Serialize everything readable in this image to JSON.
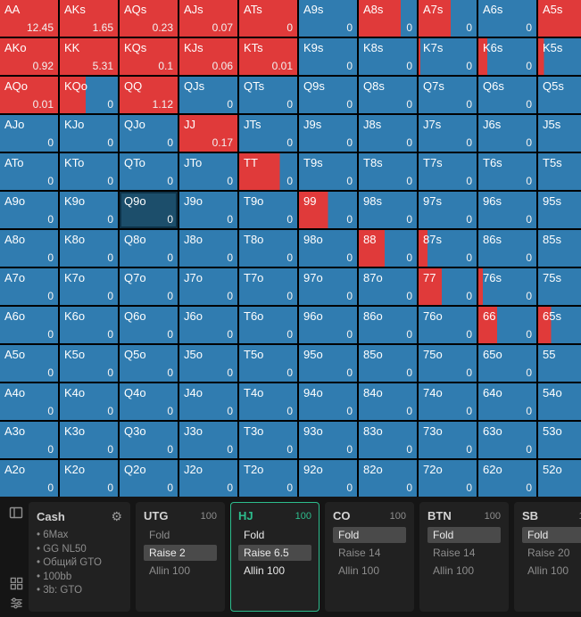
{
  "colors": {
    "raise": "#e03a3a",
    "fold": "#307cb0",
    "hover_bg": "#1c4e6b",
    "active_accent": "#2dbd8d"
  },
  "grid": {
    "hover_cell": "Q9o",
    "rows": [
      [
        [
          "AA",
          "12.45",
          1
        ],
        [
          "AKs",
          "1.65",
          1
        ],
        [
          "AQs",
          "0.23",
          1
        ],
        [
          "AJs",
          "0.07",
          1
        ],
        [
          "ATs",
          "0",
          1
        ],
        [
          "A9s",
          "0",
          0
        ],
        [
          "A8s",
          "0",
          0.72
        ],
        [
          "A7s",
          "0",
          0.55
        ],
        [
          "A6s",
          "0",
          0
        ],
        [
          "A5s",
          "0",
          0.9
        ]
      ],
      [
        [
          "AKo",
          "0.92",
          1
        ],
        [
          "KK",
          "5.31",
          1
        ],
        [
          "KQs",
          "0.1",
          1
        ],
        [
          "KJs",
          "0.06",
          1
        ],
        [
          "KTs",
          "0.01",
          1
        ],
        [
          "K9s",
          "0",
          0
        ],
        [
          "K8s",
          "0",
          0
        ],
        [
          "K7s",
          "0",
          0.03
        ],
        [
          "K6s",
          "0",
          0.15
        ],
        [
          "K5s",
          "0",
          0.1
        ]
      ],
      [
        [
          "AQo",
          "0.01",
          1
        ],
        [
          "KQo",
          "0",
          0.45
        ],
        [
          "QQ",
          "1.12",
          1
        ],
        [
          "QJs",
          "0",
          0
        ],
        [
          "QTs",
          "0",
          0
        ],
        [
          "Q9s",
          "0",
          0
        ],
        [
          "Q8s",
          "0",
          0
        ],
        [
          "Q7s",
          "0",
          0
        ],
        [
          "Q6s",
          "0",
          0
        ],
        [
          "Q5s",
          "0",
          0
        ]
      ],
      [
        [
          "AJo",
          "0",
          0
        ],
        [
          "KJo",
          "0",
          0
        ],
        [
          "QJo",
          "0",
          0
        ],
        [
          "JJ",
          "0.17",
          1
        ],
        [
          "JTs",
          "0",
          0
        ],
        [
          "J9s",
          "0",
          0
        ],
        [
          "J8s",
          "0",
          0
        ],
        [
          "J7s",
          "0",
          0
        ],
        [
          "J6s",
          "0",
          0
        ],
        [
          "J5s",
          "0",
          0
        ]
      ],
      [
        [
          "ATo",
          "0",
          0
        ],
        [
          "KTo",
          "0",
          0
        ],
        [
          "QTo",
          "0",
          0
        ],
        [
          "JTo",
          "0",
          0
        ],
        [
          "TT",
          "0",
          0.7
        ],
        [
          "T9s",
          "0",
          0
        ],
        [
          "T8s",
          "0",
          0
        ],
        [
          "T7s",
          "0",
          0
        ],
        [
          "T6s",
          "0",
          0
        ],
        [
          "T5s",
          "0",
          0
        ]
      ],
      [
        [
          "A9o",
          "0",
          0
        ],
        [
          "K9o",
          "0",
          0
        ],
        [
          "Q9o",
          "0",
          0
        ],
        [
          "J9o",
          "0",
          0
        ],
        [
          "T9o",
          "0",
          0
        ],
        [
          "99",
          "0",
          0.5
        ],
        [
          "98s",
          "0",
          0
        ],
        [
          "97s",
          "0",
          0
        ],
        [
          "96s",
          "0",
          0
        ],
        [
          "95s",
          "0",
          0
        ]
      ],
      [
        [
          "A8o",
          "0",
          0
        ],
        [
          "K8o",
          "0",
          0
        ],
        [
          "Q8o",
          "0",
          0
        ],
        [
          "J8o",
          "0",
          0
        ],
        [
          "T8o",
          "0",
          0
        ],
        [
          "98o",
          "0",
          0
        ],
        [
          "88",
          "0",
          0.45
        ],
        [
          "87s",
          "0",
          0.15
        ],
        [
          "86s",
          "0",
          0
        ],
        [
          "85s",
          "0",
          0
        ]
      ],
      [
        [
          "A7o",
          "0",
          0
        ],
        [
          "K7o",
          "0",
          0
        ],
        [
          "Q7o",
          "0",
          0
        ],
        [
          "J7o",
          "0",
          0
        ],
        [
          "T7o",
          "0",
          0
        ],
        [
          "97o",
          "0",
          0
        ],
        [
          "87o",
          "0",
          0
        ],
        [
          "77",
          "0",
          0.4
        ],
        [
          "76s",
          "0",
          0.08
        ],
        [
          "75s",
          "0",
          0
        ]
      ],
      [
        [
          "A6o",
          "0",
          0
        ],
        [
          "K6o",
          "0",
          0
        ],
        [
          "Q6o",
          "0",
          0
        ],
        [
          "J6o",
          "0",
          0
        ],
        [
          "T6o",
          "0",
          0
        ],
        [
          "96o",
          "0",
          0
        ],
        [
          "86o",
          "0",
          0
        ],
        [
          "76o",
          "0",
          0
        ],
        [
          "66",
          "0",
          0.32
        ],
        [
          "65s",
          "0",
          0.22
        ]
      ],
      [
        [
          "A5o",
          "0",
          0
        ],
        [
          "K5o",
          "0",
          0
        ],
        [
          "Q5o",
          "0",
          0
        ],
        [
          "J5o",
          "0",
          0
        ],
        [
          "T5o",
          "0",
          0
        ],
        [
          "95o",
          "0",
          0
        ],
        [
          "85o",
          "0",
          0
        ],
        [
          "75o",
          "0",
          0
        ],
        [
          "65o",
          "0",
          0
        ],
        [
          "55",
          "0",
          0
        ]
      ],
      [
        [
          "A4o",
          "0",
          0
        ],
        [
          "K4o",
          "0",
          0
        ],
        [
          "Q4o",
          "0",
          0
        ],
        [
          "J4o",
          "0",
          0
        ],
        [
          "T4o",
          "0",
          0
        ],
        [
          "94o",
          "0",
          0
        ],
        [
          "84o",
          "0",
          0
        ],
        [
          "74o",
          "0",
          0
        ],
        [
          "64o",
          "0",
          0
        ],
        [
          "54o",
          "0",
          0
        ]
      ],
      [
        [
          "A3o",
          "0",
          0
        ],
        [
          "K3o",
          "0",
          0
        ],
        [
          "Q3o",
          "0",
          0
        ],
        [
          "J3o",
          "0",
          0
        ],
        [
          "T3o",
          "0",
          0
        ],
        [
          "93o",
          "0",
          0
        ],
        [
          "83o",
          "0",
          0
        ],
        [
          "73o",
          "0",
          0
        ],
        [
          "63o",
          "0",
          0
        ],
        [
          "53o",
          "0",
          0
        ]
      ],
      [
        [
          "A2o",
          "0",
          0
        ],
        [
          "K2o",
          "0",
          0
        ],
        [
          "Q2o",
          "0",
          0
        ],
        [
          "J2o",
          "0",
          0
        ],
        [
          "T2o",
          "0",
          0
        ],
        [
          "92o",
          "0",
          0
        ],
        [
          "82o",
          "0",
          0
        ],
        [
          "72o",
          "0",
          0
        ],
        [
          "62o",
          "0",
          0
        ],
        [
          "52o",
          "0",
          0
        ]
      ]
    ]
  },
  "panel": {
    "settings_card": {
      "title": "Cash",
      "items": [
        "6Max",
        "GG NL50",
        "Общий GTO",
        "100bb",
        "3b: GTO"
      ]
    },
    "position_cards": [
      {
        "name": "UTG",
        "stack": "100",
        "active": false,
        "actions": [
          {
            "label": "Fold",
            "selected": false
          },
          {
            "label": "Raise 2",
            "selected": true
          },
          {
            "label": "Allin 100",
            "selected": false
          }
        ]
      },
      {
        "name": "HJ",
        "stack": "100",
        "active": true,
        "actions": [
          {
            "label": "Fold",
            "selected": false
          },
          {
            "label": "Raise 6.5",
            "selected": true
          },
          {
            "label": "Allin 100",
            "selected": false
          }
        ]
      },
      {
        "name": "CO",
        "stack": "100",
        "active": false,
        "actions": [
          {
            "label": "Fold",
            "selected": true
          },
          {
            "label": "Raise 14",
            "selected": false
          },
          {
            "label": "Allin 100",
            "selected": false
          }
        ]
      },
      {
        "name": "BTN",
        "stack": "100",
        "active": false,
        "actions": [
          {
            "label": "Fold",
            "selected": true
          },
          {
            "label": "Raise 14",
            "selected": false
          },
          {
            "label": "Allin 100",
            "selected": false
          }
        ]
      },
      {
        "name": "SB",
        "stack": "100",
        "active": false,
        "actions": [
          {
            "label": "Fold",
            "selected": true
          },
          {
            "label": "Raise 20",
            "selected": false
          },
          {
            "label": "Allin 100",
            "selected": false
          }
        ]
      }
    ]
  }
}
